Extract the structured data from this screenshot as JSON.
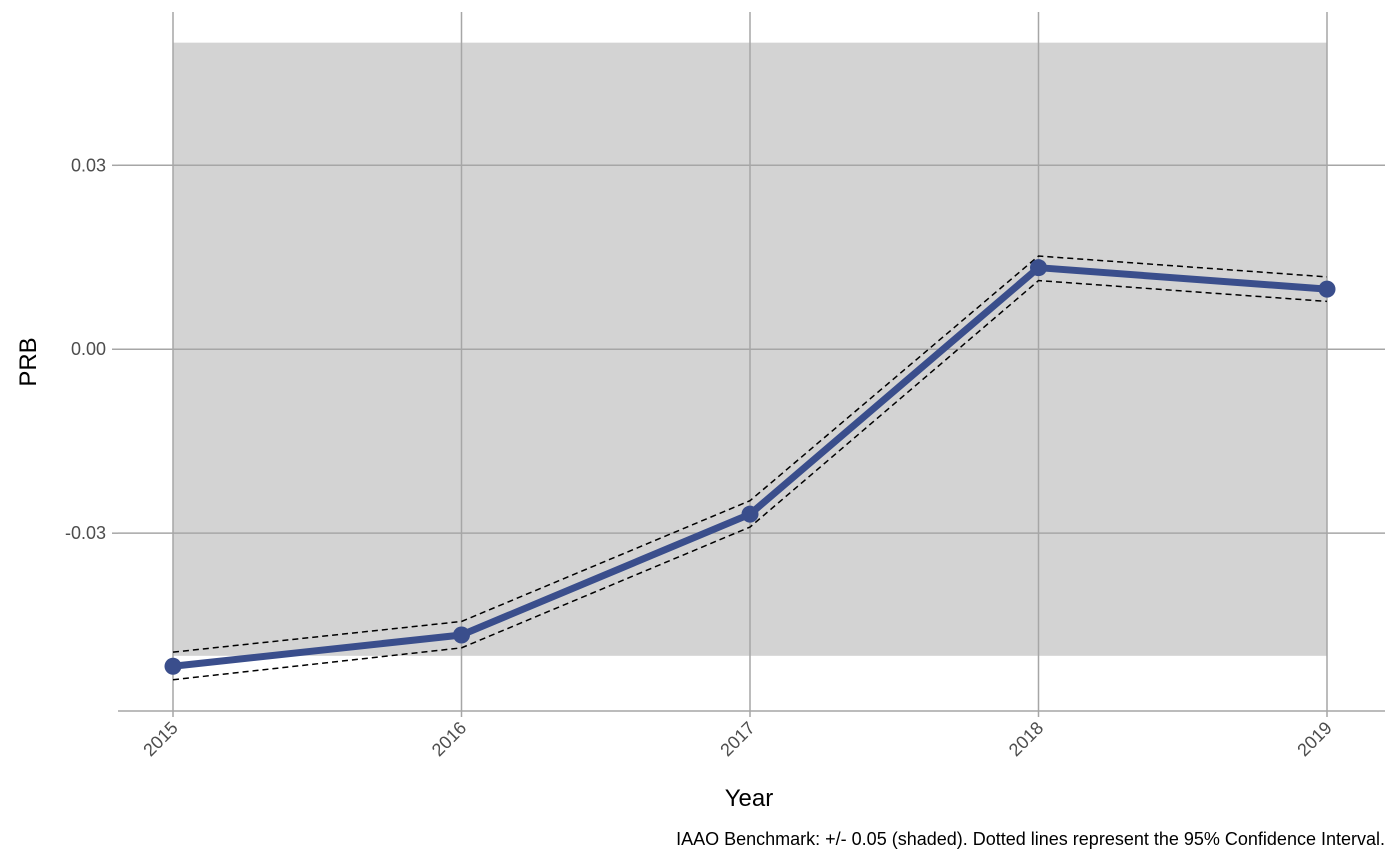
{
  "chart_data": {
    "type": "line",
    "xlabel": "Year",
    "ylabel": "PRB",
    "caption": "IAAO Benchmark: +/- 0.05 (shaded). Dotted lines represent the 95% Confidence Interval.",
    "x": [
      "2015",
      "2016",
      "2017",
      "2018",
      "2019"
    ],
    "series": [
      {
        "values": [
          -0.0517,
          -0.0466,
          -0.0269,
          0.0133,
          0.0098
        ]
      }
    ],
    "ci_lower": [
      -0.0539,
      -0.0487,
      -0.029,
      0.0112,
      0.0078
    ],
    "ci_upper": [
      -0.0494,
      -0.0444,
      -0.0247,
      0.0152,
      0.0118
    ],
    "benchmark_band": [
      -0.05,
      0.05
    ],
    "ylim": [
      -0.059,
      0.055
    ],
    "y_ticks": [
      -0.03,
      0.0,
      0.03
    ],
    "y_tick_labels": [
      "-0.03",
      "0.00",
      "0.03"
    ],
    "grid": true,
    "colors": {
      "line": "#3a4e8c",
      "band": "#d3d3d3",
      "grid": "#a6a6a6",
      "ci": "#000000"
    }
  }
}
